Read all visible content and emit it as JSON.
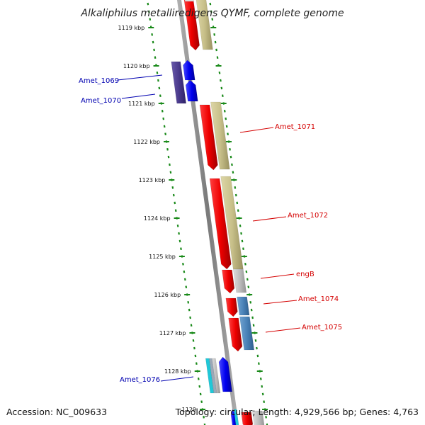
{
  "title": "Alkaliphilus metalliredigens QYMF, complete genome",
  "footer": {
    "accession": "Accession: NC_009633",
    "info": "Topology: circular; Length: 4,929,566 bp; Genes: 4,763"
  },
  "ruler": [
    "1119 kbp",
    "1120 kbp",
    "1121 kbp",
    "1122 kbp",
    "1123 kbp",
    "1124 kbp",
    "1125 kbp",
    "1126 kbp",
    "1127 kbp",
    "1128 kbp",
    "1129"
  ],
  "genes": [
    {
      "label": "Amet_1069",
      "color": "#0000b0"
    },
    {
      "label": "Amet_1070",
      "color": "#0000b0"
    },
    {
      "label": "Amet_1071",
      "color": "#d40000"
    },
    {
      "label": "Amet_1072",
      "color": "#d40000"
    },
    {
      "label": "engB",
      "color": "#d40000"
    },
    {
      "label": "Amet_1074",
      "color": "#d40000"
    },
    {
      "label": "Amet_1075",
      "color": "#d40000"
    },
    {
      "label": "Amet_1076",
      "color": "#0000b0"
    }
  ],
  "colors": {
    "forward_cds": "#ee0000",
    "reverse_cds": "#0000ee",
    "hit_tan": "#c8c08a",
    "hit_steel": "#4a82b8",
    "hit_purple": "#4a3a8c",
    "hit_gray": "#bdbdbd",
    "hit_cyan": "#20c8d8",
    "backbone": "#8a8a8a",
    "ticks": "#1a8a1a"
  }
}
